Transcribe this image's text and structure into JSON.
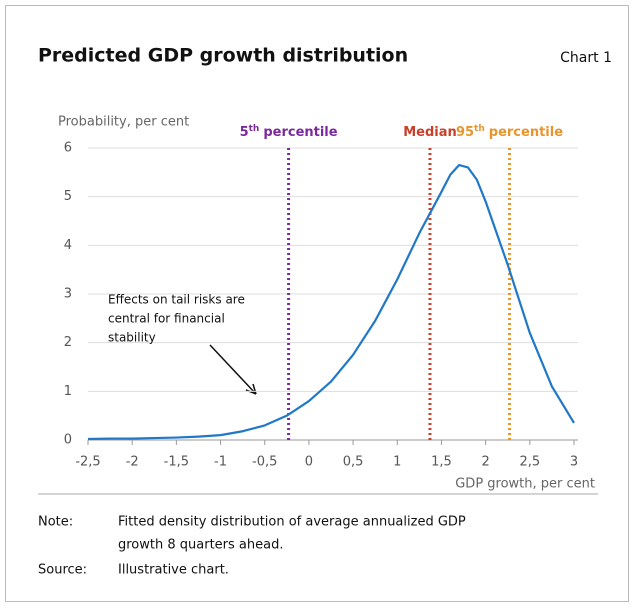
{
  "chart_data": {
    "type": "line",
    "title": "Predicted GDP growth distribution",
    "chart_label": "Chart 1",
    "y_label": "Probability, per cent",
    "x_label": "GDP growth, per cent",
    "x": [
      -2.5,
      -2.25,
      -2,
      -1.75,
      -1.5,
      -1.25,
      -1,
      -0.75,
      -0.5,
      -0.25,
      0,
      0.25,
      0.5,
      0.75,
      1,
      1.25,
      1.5,
      1.6,
      1.7,
      1.8,
      1.9,
      2,
      2.25,
      2.5,
      2.75,
      3
    ],
    "series": [
      {
        "color": "#1f78c8",
        "values": [
          0.02,
          0.03,
          0.03,
          0.04,
          0.05,
          0.07,
          0.1,
          0.18,
          0.3,
          0.5,
          0.8,
          1.2,
          1.75,
          2.45,
          3.3,
          4.25,
          5.1,
          5.45,
          5.65,
          5.6,
          5.35,
          4.9,
          3.6,
          2.2,
          1.1,
          0.35
        ]
      }
    ],
    "xlim": [
      -2.5,
      3
    ],
    "xticks": [
      {
        "value": -2.5,
        "label": "-2,5"
      },
      -2,
      {
        "value": -1.5,
        "label": "-1,5"
      },
      -1,
      {
        "value": -0.5,
        "label": "-0,5"
      },
      0,
      {
        "value": 0.5,
        "label": "0,5"
      },
      1,
      {
        "value": 1.5,
        "label": "1,5"
      },
      2,
      {
        "value": 2.5,
        "label": "2,5"
      },
      3
    ],
    "ylim": [
      0,
      6
    ],
    "yticks": [
      0,
      1,
      2,
      3,
      4,
      5,
      6
    ],
    "grid": true,
    "vlines": [
      {
        "x": -0.23,
        "label": "5",
        "sup": "th",
        "suffix": "percentile",
        "color": "#7b2a9b"
      },
      {
        "x": 1.37,
        "label": "Median",
        "color": "#c8402a"
      },
      {
        "x": 2.27,
        "label": "95",
        "sup": "th",
        "suffix": "percentile",
        "color": "#e8952e"
      }
    ],
    "annotation": [
      "Effects on tail risks are",
      "central for financial",
      "stability"
    ]
  },
  "footer": {
    "note_label": "Note:",
    "note": [
      "Fitted density distribution of average annualized GDP",
      "growth 8 quarters ahead."
    ],
    "source_label": "Source:",
    "source": "Illustrative chart."
  }
}
